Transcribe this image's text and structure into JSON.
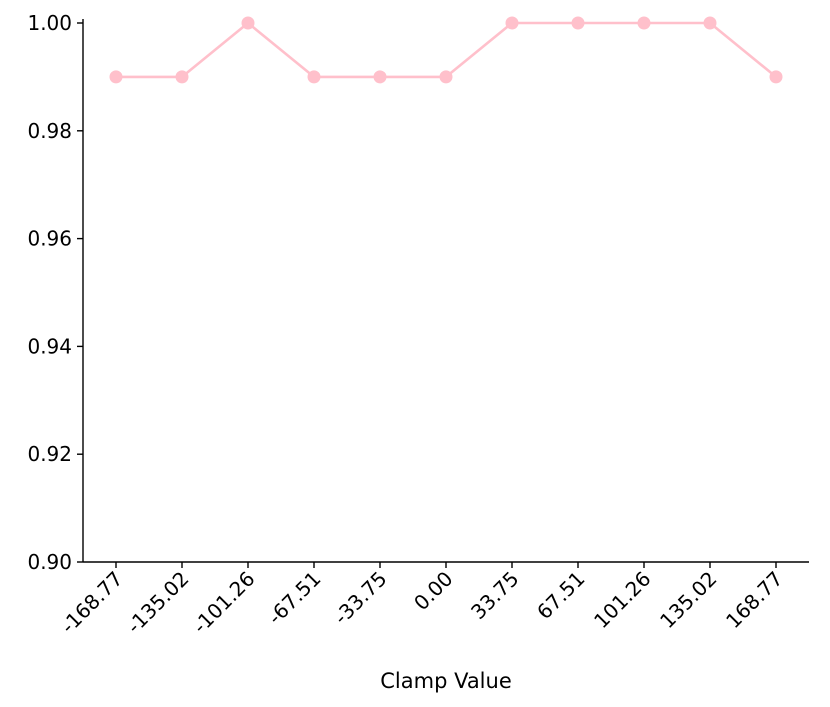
{
  "chart_data": {
    "type": "line",
    "title": "",
    "xlabel": "Clamp Value",
    "ylabel": "",
    "categories": [
      "-168.77",
      "-135.02",
      "-101.26",
      "-67.51",
      "-33.75",
      "0.00",
      "33.75",
      "67.51",
      "101.26",
      "135.02",
      "168.77"
    ],
    "series": [
      {
        "values": [
          0.99,
          0.99,
          1.0,
          0.99,
          0.99,
          0.99,
          1.0,
          1.0,
          1.0,
          1.0,
          0.99
        ],
        "color": "#ffc0cb",
        "marker": "circle"
      }
    ],
    "ylim": [
      0.9,
      1.0
    ],
    "yticks": [
      "0.90",
      "0.92",
      "0.94",
      "0.96",
      "0.98",
      "1.00"
    ],
    "grid": false,
    "legend": "none"
  }
}
